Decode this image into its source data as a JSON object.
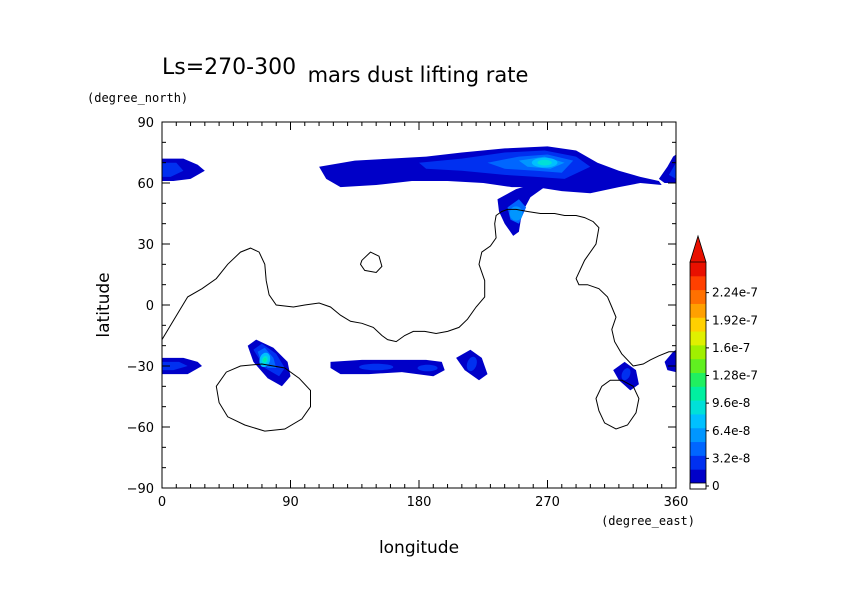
{
  "chart_data": {
    "type": "heatmap",
    "period_label": "Ls=270-300",
    "title": "mars dust lifting rate",
    "xlabel": "longitude",
    "ylabel": "latitude",
    "xunits": "(degree_east)",
    "yunits": "(degree_north)",
    "xlim": [
      0,
      360
    ],
    "ylim": [
      -90,
      90
    ],
    "x_ticks": [
      "0",
      "90",
      "180",
      "270",
      "360"
    ],
    "y_ticks": [
      "90",
      "60",
      "30",
      "0",
      "−30",
      "−60",
      "−90"
    ],
    "grid": false,
    "colorbar": {
      "placement": "right",
      "labels": [
        "0",
        "3.2e-8",
        "6.4e-8",
        "9.6e-8",
        "1.28e-7",
        "1.6e-7",
        "1.92e-7",
        "2.24e-7"
      ],
      "values": [
        0,
        3.2e-08,
        6.4e-08,
        9.6e-08,
        1.28e-07,
        1.6e-07,
        1.92e-07,
        2.24e-07
      ],
      "level_step": 1.6e-08,
      "colors": [
        "#0000c8",
        "#0030f0",
        "#0066ff",
        "#0096ff",
        "#00c0ff",
        "#00e0d8",
        "#00f0a0",
        "#20f060",
        "#60f020",
        "#a0f000",
        "#e0f000",
        "#ffd000",
        "#ffa000",
        "#ff7000",
        "#ff4000",
        "#e81000"
      ],
      "extend": "max"
    },
    "regions": [
      {
        "name": "north polar band east",
        "lon": [
          110,
          350
        ],
        "lat": [
          53,
          78
        ],
        "peak_lon": 268,
        "peak_lat": 69,
        "peak_value": 8.5e-08
      },
      {
        "name": "north polar band west",
        "lon": [
          0,
          30
        ],
        "lat": [
          60,
          72
        ],
        "peak_value": 2.5e-08
      },
      {
        "name": "north band east edge",
        "lon": [
          345,
          360
        ],
        "lat": [
          60,
          72
        ],
        "peak_value": 2e-08
      },
      {
        "name": "northern tongue",
        "lon": [
          235,
          262
        ],
        "lat": [
          35,
          55
        ],
        "peak_lon": 248,
        "peak_lat": 43,
        "peak_value": 5.5e-08
      },
      {
        "name": "southern patch",
        "lon": [
          60,
          90
        ],
        "lat": [
          -42,
          -18
        ],
        "peak_lon": 72,
        "peak_lat": -27,
        "peak_value": 1e-07
      },
      {
        "name": "southern band west",
        "lon": [
          0,
          28
        ],
        "lat": [
          -34,
          -26
        ],
        "peak_value": 3e-08
      },
      {
        "name": "southern band central",
        "lon": [
          118,
          198
        ],
        "lat": [
          -35,
          -27
        ],
        "peak_value": 3e-08
      },
      {
        "name": "southern spot 215",
        "lon": [
          205,
          230
        ],
        "lat": [
          -37,
          -22
        ],
        "peak_value": 3e-08
      },
      {
        "name": "southern spot 325",
        "lon": [
          315,
          335
        ],
        "lat": [
          -42,
          -28
        ],
        "peak_value": 3e-08
      },
      {
        "name": "southern band east edge",
        "lon": [
          350,
          360
        ],
        "lat": [
          -33,
          -22
        ],
        "peak_value": 2e-08
      }
    ]
  }
}
